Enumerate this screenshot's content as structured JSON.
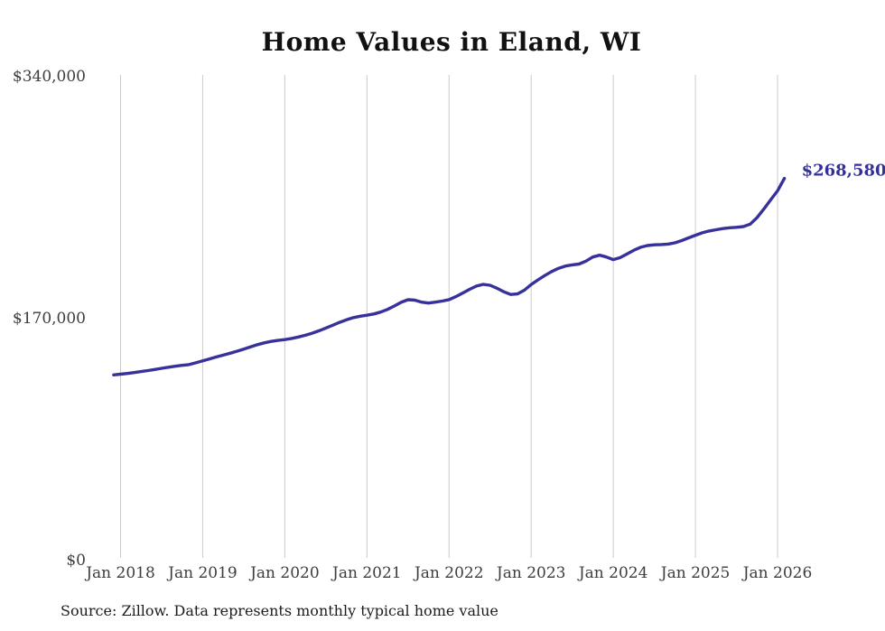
{
  "chart_data": {
    "type": "line",
    "title": "Home Values in Eland, WI",
    "source_note": "Source: Zillow. Data represents monthly typical home value",
    "end_label": "$268,580",
    "end_value": 268580,
    "ylim": [
      0,
      340000
    ],
    "y_tick_values": [
      0,
      170000,
      340000
    ],
    "y_tick_labels": [
      "$0",
      "$170,000",
      "$340,000"
    ],
    "x_tick_labels": [
      "Jan 2018",
      "Jan 2019",
      "Jan 2020",
      "Jan 2021",
      "Jan 2022",
      "Jan 2023",
      "Jan 2024",
      "Jan 2025",
      "Jan 2026"
    ],
    "grid": "vertical",
    "legend": "none",
    "line_color": "#37319b",
    "grid_color": "#cbcbcb",
    "series": [
      {
        "name": "Monthly typical home value",
        "start_month": "Dec 2017",
        "end_month": "Feb 2026",
        "frequency": "monthly",
        "values": [
          130500,
          131000,
          131500,
          132100,
          132800,
          133500,
          134300,
          135100,
          135900,
          136600,
          137200,
          137700,
          139000,
          140300,
          141700,
          143100,
          144400,
          145700,
          147100,
          148600,
          150200,
          151700,
          153000,
          154000,
          154700,
          155300,
          156100,
          157100,
          158300,
          159800,
          161500,
          163400,
          165400,
          167400,
          169200,
          170700,
          171700,
          172400,
          173300,
          174600,
          176500,
          178900,
          181500,
          183300,
          183000,
          181600,
          181000,
          181600,
          182400,
          183400,
          185500,
          188000,
          190600,
          192900,
          194100,
          193500,
          191400,
          188900,
          187000,
          187400,
          190000,
          194000,
          197300,
          200300,
          203100,
          205400,
          207000,
          207800,
          208400,
          210400,
          213300,
          214600,
          213300,
          211500,
          212900,
          215400,
          218100,
          220200,
          221400,
          221900,
          222100,
          222400,
          223300,
          224900,
          226800,
          228600,
          230300,
          231600,
          232500,
          233300,
          233900,
          234200,
          234700,
          236400,
          241000,
          247000,
          253500,
          259800,
          268580
        ]
      }
    ]
  }
}
